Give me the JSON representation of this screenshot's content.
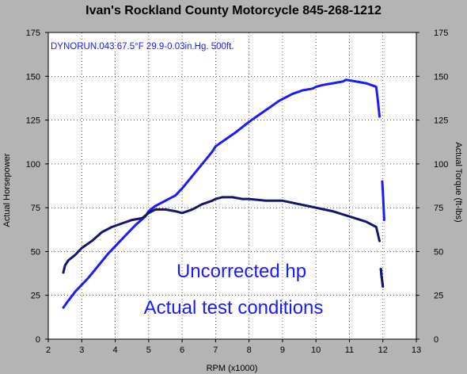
{
  "chart_data": {
    "type": "line",
    "title": "Ivan's Rockland County Motorcycle  845-268-1212",
    "xlabel": "RPM (x1000)",
    "ylabel_left": "Actual Horsepower",
    "ylabel_right": "Actual Torque (ft-lbs)",
    "run_info": "DYNORUN.043 67.5°F 29.9-0.03in.Hg. 500ft.",
    "annotations": [
      "Uncorrected hp",
      "Actual test conditions"
    ],
    "xlim": [
      2,
      13
    ],
    "ylim": [
      0,
      175
    ],
    "x_ticks": [
      "2",
      "3",
      "4",
      "5",
      "6",
      "7",
      "8",
      "9",
      "10",
      "11",
      "12",
      "13"
    ],
    "y_ticks_left": [
      "0",
      "25",
      "50",
      "75",
      "100",
      "125",
      "150",
      "175"
    ],
    "y_ticks_right": [
      "0",
      "25",
      "50",
      "75",
      "100",
      "125",
      "150",
      "175"
    ],
    "grid": true,
    "colors": {
      "background": "#b4b4b4",
      "plot_area": "#ffffff",
      "horsepower": "#1a1aff",
      "torque": "#15156e",
      "annotation": "#1a1aff"
    },
    "series": [
      {
        "axis": "left",
        "color": "#1a1aff",
        "x": [
          2.45,
          2.6,
          2.8,
          3.0,
          3.2,
          3.5,
          3.8,
          4.0,
          4.3,
          4.6,
          4.9,
          5.0,
          5.2,
          5.5,
          5.8,
          6.0,
          6.3,
          6.6,
          6.9,
          7.0,
          7.3,
          7.6,
          8.0,
          8.3,
          8.6,
          8.9,
          9.0,
          9.3,
          9.6,
          9.9,
          10.0,
          10.2,
          10.5,
          10.8,
          10.9,
          11.2,
          11.5,
          11.8,
          11.85,
          11.9
        ],
        "y": [
          18,
          22,
          27,
          31,
          35,
          42,
          49,
          53,
          59,
          65,
          70,
          73,
          76,
          79,
          82,
          86,
          93,
          100,
          107,
          110,
          114,
          118,
          124,
          128,
          132,
          136,
          137,
          140,
          142,
          143,
          144,
          145,
          146,
          147,
          148,
          147,
          146,
          144,
          136,
          127
        ]
      },
      {
        "axis": "left",
        "color": "#1a1aff",
        "x": [
          11.98,
          12.0,
          12.02,
          12.04
        ],
        "y": [
          90,
          84,
          76,
          68
        ]
      },
      {
        "axis": "left",
        "color": "#1a1aff",
        "x": [
          11.94,
          11.96,
          11.98,
          12.0
        ],
        "y": [
          40,
          36,
          33,
          30
        ]
      },
      {
        "axis": "right",
        "color": "#15156e",
        "x": [
          2.45,
          2.5,
          2.6,
          2.8,
          3.0,
          3.3,
          3.6,
          3.9,
          4.2,
          4.5,
          4.8,
          5.0,
          5.2,
          5.5,
          5.8,
          6.0,
          6.3,
          6.6,
          6.9,
          7.0,
          7.2,
          7.5,
          7.8,
          8.0,
          8.5,
          9.0,
          9.5,
          10.0,
          10.5,
          11.0,
          11.5,
          11.8,
          11.85,
          11.9
        ],
        "y": [
          38,
          42,
          45,
          48,
          52,
          56,
          61,
          64,
          66,
          68,
          69,
          72,
          74,
          74,
          73,
          72,
          74,
          77,
          79,
          80,
          81,
          81,
          80,
          80,
          79,
          79,
          77,
          75,
          73,
          70,
          67,
          64,
          60,
          56
        ]
      },
      {
        "axis": "right",
        "color": "#15156e",
        "x": [
          11.94,
          11.96,
          11.98,
          12.0
        ],
        "y": [
          40,
          36,
          33,
          30
        ]
      }
    ]
  }
}
